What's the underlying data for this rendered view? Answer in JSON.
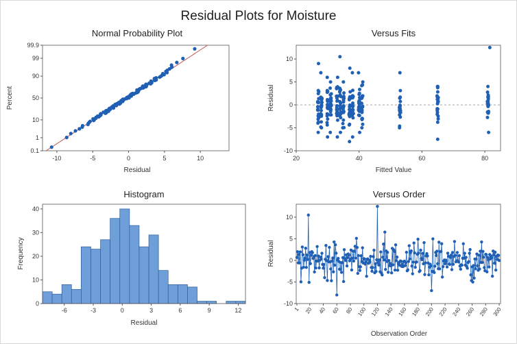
{
  "figure": {
    "title": "Residual Plots for Moisture"
  },
  "colors": {
    "points": "#1f5fb4",
    "bars": "#6f9fd8",
    "bar_edge": "#2b5d9e",
    "fit_line": "#c0504d",
    "ref_line": "#999999",
    "axis": "#555555"
  },
  "chart_data": [
    {
      "type": "scatter",
      "title": "Normal Probability Plot",
      "xlabel": "Residual",
      "ylabel": "Percent",
      "xlim": [
        -12,
        14
      ],
      "xticks": [
        -10,
        -5,
        0,
        5,
        10
      ],
      "yticks": [
        0.1,
        1,
        10,
        50,
        90,
        99,
        99.9
      ],
      "ylim_percent": [
        0.1,
        99.9
      ],
      "fit_line": {
        "from": [
          -11.5,
          0.1
        ],
        "to": [
          11.0,
          99.9
        ]
      },
      "points_percent_range": [
        0.2,
        99.8
      ]
    },
    {
      "type": "scatter",
      "title": "Versus Fits",
      "xlabel": "Fitted Value",
      "ylabel": "Residual",
      "xlim": [
        20,
        85
      ],
      "ylim": [
        -10,
        13
      ],
      "xticks": [
        20,
        40,
        60,
        80
      ],
      "yticks": [
        -10,
        -5,
        0,
        5,
        10
      ],
      "reference_line_y": 0,
      "groups": [
        {
          "fitted": 27,
          "min": -6,
          "max": 9
        },
        {
          "fitted": 28,
          "min": -5,
          "max": 7
        },
        {
          "fitted": 30,
          "min": -7,
          "max": 6
        },
        {
          "fitted": 31,
          "min": -6,
          "max": 5
        },
        {
          "fitted": 33,
          "min": -7,
          "max": 6
        },
        {
          "fitted": 34,
          "min": -6,
          "max": 10.5
        },
        {
          "fitted": 35,
          "min": -5,
          "max": 5
        },
        {
          "fitted": 37,
          "min": -8,
          "max": 8
        },
        {
          "fitted": 38,
          "min": -7,
          "max": 7
        },
        {
          "fitted": 40,
          "min": -6,
          "max": 7
        },
        {
          "fitted": 41,
          "min": -5,
          "max": 5
        },
        {
          "fitted": 53,
          "min": -5,
          "max": 7
        },
        {
          "fitted": 65,
          "min": -7.5,
          "max": 4
        },
        {
          "fitted": 81,
          "min": -6,
          "max": 4
        },
        {
          "fitted": 81.5,
          "min": 12.5,
          "max": 12.5
        }
      ]
    },
    {
      "type": "bar",
      "title": "Histogram",
      "xlabel": "Residual",
      "ylabel": "Frequency",
      "xlim": [
        -8.25,
        12.75
      ],
      "ylim": [
        0,
        42
      ],
      "xticks": [
        -6,
        -3,
        0,
        3,
        6,
        9,
        12
      ],
      "yticks": [
        0,
        10,
        20,
        30,
        40
      ],
      "bin_width": 1,
      "bin_start": -8.25,
      "values": [
        5,
        4,
        8,
        6,
        24,
        23,
        27,
        36,
        40,
        33,
        24,
        29,
        14,
        8,
        8,
        7,
        1,
        1,
        0,
        1,
        1
      ]
    },
    {
      "type": "line",
      "title": "Versus Order",
      "xlabel": "Observation Order",
      "ylabel": "Residual",
      "xlim": [
        0,
        302
      ],
      "ylim": [
        -10,
        13
      ],
      "xticks": [
        1,
        20,
        40,
        60,
        80,
        100,
        120,
        140,
        160,
        180,
        200,
        220,
        240,
        260,
        280,
        300
      ],
      "yticks": [
        -10,
        -5,
        0,
        5,
        10
      ],
      "n": 300,
      "residual_range": [
        -8,
        12.5
      ]
    }
  ]
}
